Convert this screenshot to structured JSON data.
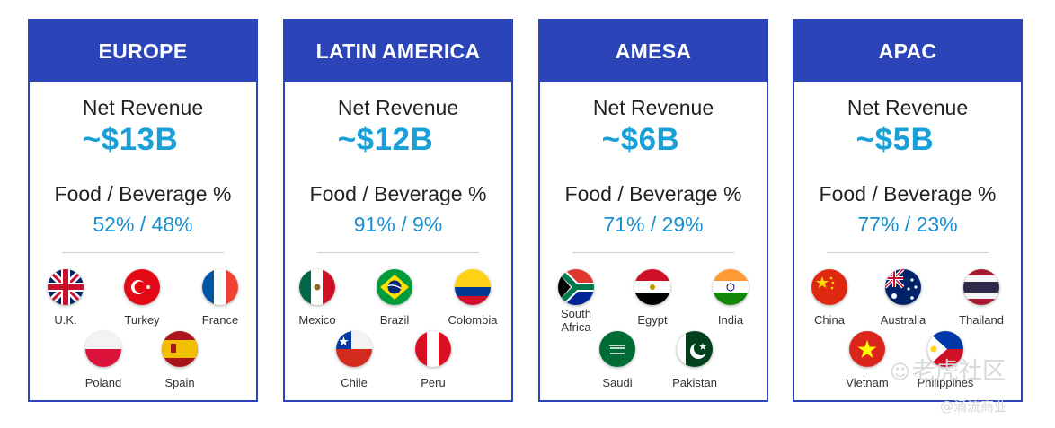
{
  "labels": {
    "net_revenue": "Net Revenue",
    "mix": "Food / Beverage %"
  },
  "regions": [
    {
      "name": "EUROPE",
      "revenue": "~$13B",
      "mix": "52% / 48%",
      "countries": [
        "U.K.",
        "Turkey",
        "France",
        "Poland",
        "Spain"
      ]
    },
    {
      "name": "LATIN AMERICA",
      "revenue": "~$12B",
      "mix": "91% / 9%",
      "countries": [
        "Mexico",
        "Brazil",
        "Colombia",
        "Chile",
        "Peru"
      ]
    },
    {
      "name": "AMESA",
      "revenue": "~$6B",
      "mix": "71% / 29%",
      "countries": [
        "South Africa",
        "Egypt",
        "India",
        "Saudi",
        "Pakistan"
      ]
    },
    {
      "name": "APAC",
      "revenue": "~$5B",
      "mix": "77% / 23%",
      "countries": [
        "China",
        "Australia",
        "Thailand",
        "Vietnam",
        "Philippines"
      ]
    }
  ],
  "watermark": {
    "line1": "老虎社区",
    "line2": "@涌流商业"
  },
  "colors": {
    "header_blue": "#2b44b8",
    "revenue_blue": "#1aa0d8",
    "mix_blue": "#1a8fd0"
  }
}
